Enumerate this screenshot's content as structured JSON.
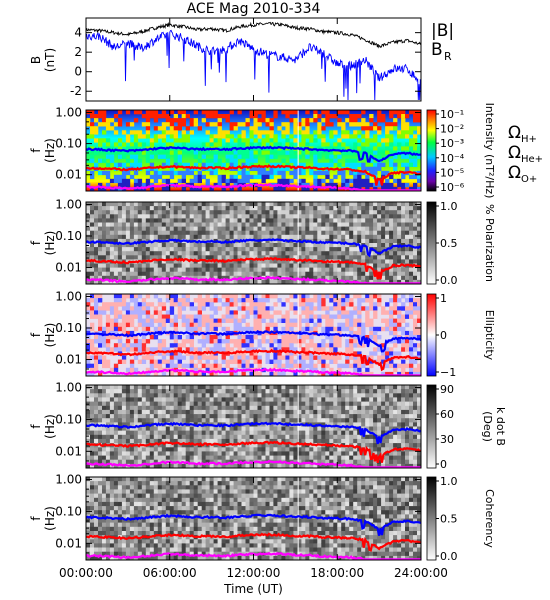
{
  "title": "ACE Mag 2010-334",
  "xaxis": {
    "label": "Time (UT)",
    "ticks": [
      "00:00:00",
      "06:00:00",
      "12:00:00",
      "18:00:00",
      "24:00:00"
    ],
    "range_hours": [
      0,
      24
    ]
  },
  "legend_panel1": [
    {
      "label": "|B|",
      "color": "#000000"
    },
    {
      "label": "B",
      "sub": "R",
      "color": "#0000ff"
    }
  ],
  "legend_panel2": [
    {
      "label": "Ω",
      "sub": "H+",
      "color": "#0000ff"
    },
    {
      "label": "Ω",
      "sub": "He+",
      "color": "#ff0000"
    },
    {
      "label": "Ω",
      "sub": "O+",
      "color": "#ff00ff"
    }
  ],
  "freq_axis": {
    "label_line1": "f",
    "label_line2": "(Hz)",
    "ticks": [
      "1.00",
      "0.10",
      "0.01"
    ],
    "scale": "log",
    "range_hz": [
      0.003,
      1.2
    ]
  },
  "colors": {
    "total_b": "#000000",
    "b_radial": "#0000ff",
    "omega_h": "#0000ff",
    "omega_he": "#ff0000",
    "omega_o": "#ff00ff"
  },
  "chart_data": [
    {
      "type": "line",
      "panel": "B",
      "ylabel_line1": "B",
      "ylabel_line2": "(nT)",
      "ylim": [
        -3,
        5.5
      ],
      "yticks": [
        "4",
        "2",
        "0",
        "-2"
      ],
      "x_hours": [
        0,
        1,
        2,
        3,
        4,
        5,
        6,
        7,
        8,
        9,
        10,
        11,
        12,
        13,
        14,
        15,
        16,
        17,
        18,
        19,
        20,
        21,
        22,
        23,
        24
      ],
      "series": [
        {
          "name": "|B|",
          "values": [
            4.3,
            4.2,
            4.0,
            3.8,
            4.1,
            4.5,
            4.8,
            4.6,
            4.3,
            4.4,
            4.2,
            4.6,
            4.8,
            4.9,
            4.8,
            4.5,
            4.4,
            4.1,
            4.0,
            3.8,
            3.3,
            2.6,
            3.0,
            3.2,
            2.8
          ]
        },
        {
          "name": "B_R",
          "values": [
            3.7,
            3.6,
            2.5,
            2.9,
            2.4,
            3.3,
            3.9,
            3.4,
            2.6,
            2.1,
            2.3,
            3.2,
            2.3,
            1.8,
            1.5,
            1.2,
            2.5,
            1.9,
            0.8,
            0.6,
            1.2,
            -0.7,
            0.3,
            0.3,
            -1.1
          ]
        }
      ]
    },
    {
      "type": "heatmap",
      "panel": "Intensity",
      "colorbar_label": "Intensity (nT²/Hz)",
      "colorbar_ticks": [
        "10⁻¹",
        "10⁻²",
        "10⁻³",
        "10⁻⁴",
        "10⁻⁵",
        "10⁻⁶"
      ]
    },
    {
      "type": "heatmap",
      "panel": "Polarization",
      "colorbar_label": "% Polarization",
      "colorbar_ticks": [
        "1.0",
        "0.5",
        "0.0"
      ]
    },
    {
      "type": "heatmap",
      "panel": "Ellipticity",
      "colorbar_label": "Ellipticity",
      "colorbar_ticks": [
        "1",
        "0",
        "−1"
      ]
    },
    {
      "type": "heatmap",
      "panel": "k dot B",
      "colorbar_label_line1": "k dot B",
      "colorbar_label_line2": "(Deg)",
      "colorbar_ticks": [
        "90",
        "60",
        "30",
        "0"
      ]
    },
    {
      "type": "heatmap",
      "panel": "Coherency",
      "colorbar_label": "Coherency",
      "colorbar_ticks": [
        "1.0",
        "0.5",
        "0.0"
      ]
    },
    {
      "type": "line",
      "panel": "gyrofrequencies",
      "x_hours": [
        0,
        1,
        2,
        3,
        4,
        5,
        6,
        7,
        8,
        9,
        10,
        11,
        12,
        13,
        14,
        15,
        16,
        17,
        18,
        19,
        20,
        21,
        22,
        23,
        24
      ],
      "series": [
        {
          "name": "Ω_H+",
          "values": [
            0.066,
            0.064,
            0.061,
            0.058,
            0.062,
            0.069,
            0.073,
            0.07,
            0.066,
            0.067,
            0.064,
            0.07,
            0.073,
            0.075,
            0.073,
            0.069,
            0.067,
            0.062,
            0.061,
            0.058,
            0.05,
            0.028,
            0.046,
            0.049,
            0.043
          ]
        },
        {
          "name": "Ω_He+",
          "values": [
            0.0165,
            0.016,
            0.0152,
            0.0145,
            0.0156,
            0.0172,
            0.0183,
            0.0175,
            0.0165,
            0.0168,
            0.016,
            0.0175,
            0.0183,
            0.0187,
            0.0183,
            0.0172,
            0.0168,
            0.0156,
            0.0152,
            0.0145,
            0.0126,
            0.007,
            0.0114,
            0.0122,
            0.0107
          ]
        },
        {
          "name": "Ω_O+",
          "values": [
            0.0041,
            0.004,
            0.0038,
            0.0036,
            0.0039,
            0.0043,
            0.0046,
            0.0044,
            0.0041,
            0.0042,
            0.004,
            0.0044,
            0.0046,
            0.0047,
            0.0046,
            0.0043,
            0.0042,
            0.0039,
            0.0038,
            0.0036,
            0.0032,
            0.0018,
            0.0029,
            0.003,
            0.0027
          ]
        }
      ]
    }
  ]
}
